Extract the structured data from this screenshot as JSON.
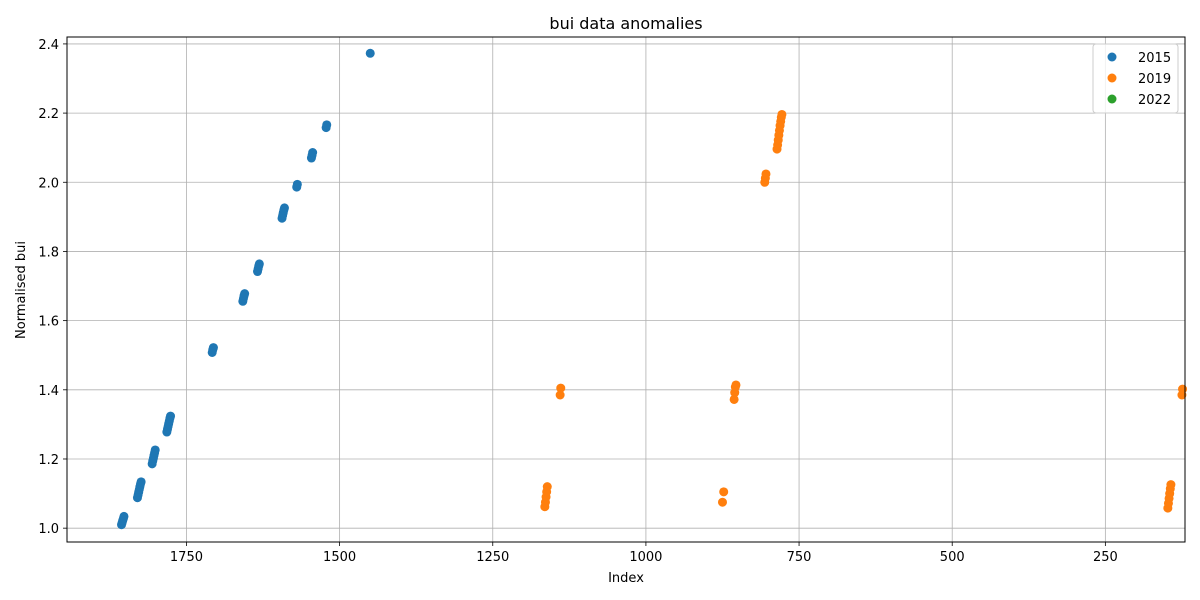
{
  "chart_data": {
    "type": "scatter",
    "title": "bui data anomalies",
    "xlabel": "Index",
    "ylabel": "Normalised bui",
    "xlim": [
      1945,
      120
    ],
    "ylim": [
      0.96,
      2.42
    ],
    "x_inverted": true,
    "x_ticks": [
      1750,
      1500,
      1250,
      1000,
      750,
      500,
      250
    ],
    "x_tick_labels": [
      "1750",
      "1500",
      "1250",
      "1000",
      "750",
      "500",
      "250"
    ],
    "y_ticks": [
      1.0,
      1.2,
      1.4,
      1.6,
      1.8,
      2.0,
      2.2,
      2.4
    ],
    "y_tick_labels": [
      "1.0",
      "1.2",
      "1.4",
      "1.6",
      "1.8",
      "2.0",
      "2.2",
      "2.4"
    ],
    "grid": true,
    "legend_position": "top-right",
    "series": [
      {
        "name": "2015",
        "color": "#1f77b4",
        "points": [
          [
            1856,
            1.01
          ],
          [
            1855,
            1.016
          ],
          [
            1854,
            1.022
          ],
          [
            1853,
            1.028
          ],
          [
            1852,
            1.034
          ],
          [
            1830,
            1.088
          ],
          [
            1829,
            1.096
          ],
          [
            1828,
            1.104
          ],
          [
            1827,
            1.112
          ],
          [
            1826,
            1.12
          ],
          [
            1825,
            1.128
          ],
          [
            1824,
            1.134
          ],
          [
            1806,
            1.186
          ],
          [
            1805,
            1.194
          ],
          [
            1804,
            1.202
          ],
          [
            1803,
            1.21
          ],
          [
            1802,
            1.218
          ],
          [
            1801,
            1.226
          ],
          [
            1782,
            1.278
          ],
          [
            1781,
            1.286
          ],
          [
            1780,
            1.294
          ],
          [
            1779,
            1.302
          ],
          [
            1778,
            1.31
          ],
          [
            1777,
            1.318
          ],
          [
            1776,
            1.324
          ],
          [
            1708,
            1.508
          ],
          [
            1707,
            1.516
          ],
          [
            1706,
            1.522
          ],
          [
            1658,
            1.656
          ],
          [
            1657,
            1.664
          ],
          [
            1656,
            1.672
          ],
          [
            1655,
            1.678
          ],
          [
            1634,
            1.742
          ],
          [
            1633,
            1.75
          ],
          [
            1632,
            1.758
          ],
          [
            1631,
            1.764
          ],
          [
            1594,
            1.896
          ],
          [
            1593,
            1.904
          ],
          [
            1592,
            1.912
          ],
          [
            1591,
            1.92
          ],
          [
            1590,
            1.926
          ],
          [
            1570,
            1.986
          ],
          [
            1569,
            1.994
          ],
          [
            1546,
            2.07
          ],
          [
            1545,
            2.078
          ],
          [
            1544,
            2.086
          ],
          [
            1522,
            2.158
          ],
          [
            1521,
            2.166
          ],
          [
            1450,
            2.373
          ]
        ]
      },
      {
        "name": "2019",
        "color": "#ff7f0e",
        "points": [
          [
            1165,
            1.062
          ],
          [
            1164,
            1.075
          ],
          [
            1163,
            1.09
          ],
          [
            1162,
            1.105
          ],
          [
            1161,
            1.12
          ],
          [
            1140,
            1.385
          ],
          [
            1139,
            1.405
          ],
          [
            875,
            1.075
          ],
          [
            873,
            1.105
          ],
          [
            856,
            1.372
          ],
          [
            855,
            1.392
          ],
          [
            854,
            1.408
          ],
          [
            853,
            1.414
          ],
          [
            806,
            2.0
          ],
          [
            805,
            2.012
          ],
          [
            804,
            2.024
          ],
          [
            786,
            2.096
          ],
          [
            785,
            2.108
          ],
          [
            784,
            2.122
          ],
          [
            783,
            2.136
          ],
          [
            782,
            2.15
          ],
          [
            781,
            2.164
          ],
          [
            780,
            2.176
          ],
          [
            779,
            2.188
          ],
          [
            778,
            2.196
          ],
          [
            148,
            1.058
          ],
          [
            147,
            1.072
          ],
          [
            146,
            1.086
          ],
          [
            145,
            1.1
          ],
          [
            144,
            1.114
          ],
          [
            143,
            1.126
          ],
          [
            125,
            1.385
          ],
          [
            124,
            1.402
          ]
        ]
      },
      {
        "name": "2022",
        "color": "#2ca02c",
        "points": []
      }
    ]
  }
}
